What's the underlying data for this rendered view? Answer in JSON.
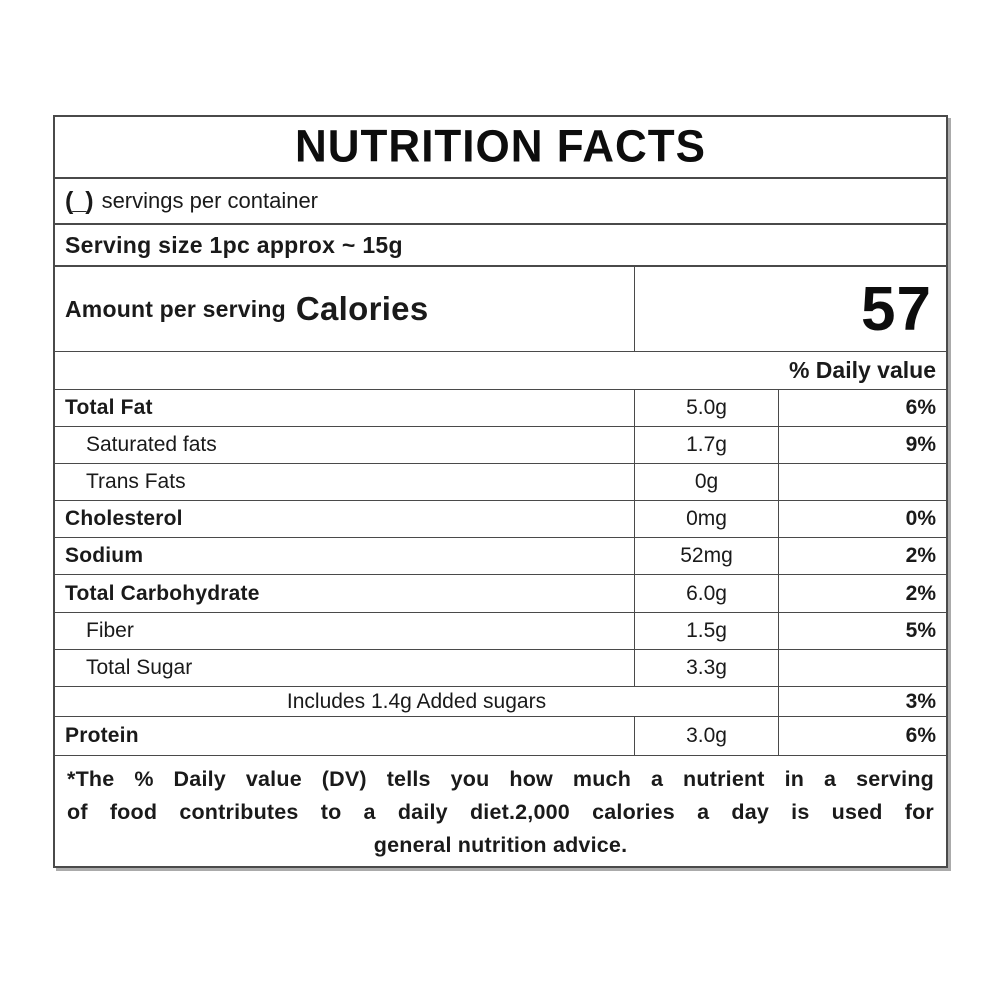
{
  "label": {
    "title": "NUTRITION FACTS",
    "servings": {
      "blank": "(_)",
      "text": "servings per container"
    },
    "serving_size": "Serving size 1pc approx ~ 15g",
    "calories": {
      "amount_per_serving_label": "Amount per serving",
      "calories_label": "Calories",
      "value": "57"
    },
    "daily_value_header": "% Daily value",
    "rows": [
      {
        "name": "Total Fat",
        "amount": "5.0g",
        "dv": "6%"
      },
      {
        "name": "Saturated fats",
        "amount": "1.7g",
        "dv": "9%"
      },
      {
        "name": "Trans Fats",
        "amount": "0g",
        "dv": ""
      },
      {
        "name": "Cholesterol",
        "amount": "0mg",
        "dv": "0%"
      },
      {
        "name": "Sodium",
        "amount": "52mg",
        "dv": "2%"
      },
      {
        "name": "Total Carbohydrate",
        "amount": "6.0g",
        "dv": "2%"
      },
      {
        "name": "Fiber",
        "amount": "1.5g",
        "dv": "5%"
      },
      {
        "name": "Total Sugar",
        "amount": "3.3g",
        "dv": ""
      },
      {
        "name": "Includes 1.4g Added sugars",
        "amount": "",
        "dv": "3%"
      },
      {
        "name": "Protein",
        "amount": "3.0g",
        "dv": "6%"
      }
    ],
    "footnote_lines": [
      "*The % Daily value (DV) tells you how much a nutrient in a serving",
      "of food contributes to a daily diet.2,000 calories a day is used for",
      "general nutrition advice."
    ],
    "colors": {
      "border": "#4a4a4a",
      "text": "#1a1a1a",
      "background": "#ffffff"
    }
  }
}
